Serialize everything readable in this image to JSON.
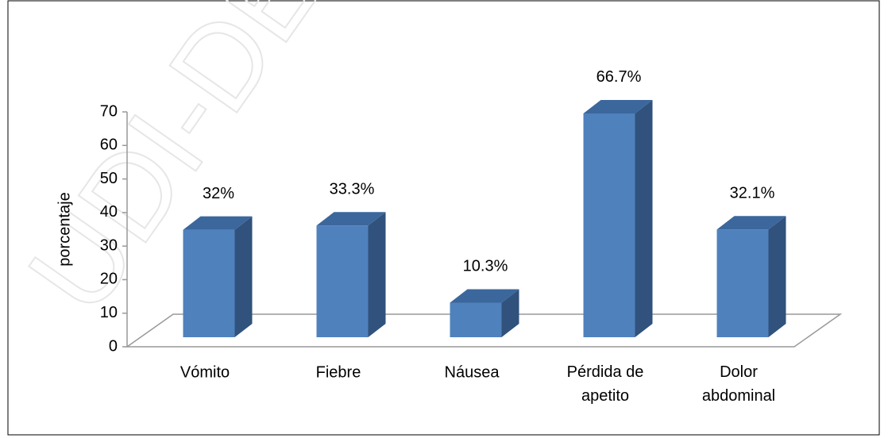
{
  "watermark": "UDI-DE",
  "chart_data": {
    "type": "bar3d",
    "categories": [
      "Vómito",
      "Fiebre",
      "Náusea",
      "Pérdida de apetito",
      "Dolor abdominal"
    ],
    "values": [
      32,
      33.3,
      10.3,
      66.7,
      32.1
    ],
    "value_labels": [
      "32%",
      "33.3%",
      "10.3%",
      "66.7%",
      "32.1%"
    ],
    "y_label": "porcentaje",
    "color": "#4f81bd",
    "ylim": [
      0,
      70
    ],
    "yticks": [
      0,
      10,
      20,
      30,
      40,
      50,
      60,
      70
    ],
    "grid": false
  }
}
